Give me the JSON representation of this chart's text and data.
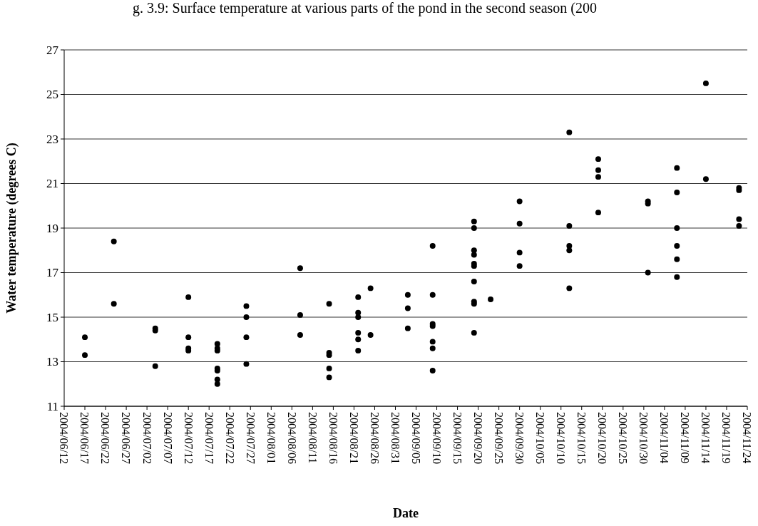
{
  "chart_data": {
    "type": "scatter",
    "title": "g. 3.9: Surface temperature at various parts of the pond in the second season (200",
    "xlabel": "Date",
    "ylabel": "Water temperature (degrees C)",
    "x": [
      "2004-06-17",
      "2004-06-17",
      "2004-06-24",
      "2004-06-24",
      "2004-07-04",
      "2004-07-04",
      "2004-07-04",
      "2004-07-12",
      "2004-07-12",
      "2004-07-12",
      "2004-07-12",
      "2004-07-19",
      "2004-07-19",
      "2004-07-19",
      "2004-07-19",
      "2004-07-19",
      "2004-07-19",
      "2004-07-19",
      "2004-07-26",
      "2004-07-26",
      "2004-07-26",
      "2004-07-26",
      "2004-08-08",
      "2004-08-08",
      "2004-08-08",
      "2004-08-15",
      "2004-08-15",
      "2004-08-15",
      "2004-08-15",
      "2004-08-15",
      "2004-08-22",
      "2004-08-22",
      "2004-08-22",
      "2004-08-22",
      "2004-08-22",
      "2004-08-22",
      "2004-08-25",
      "2004-08-25",
      "2004-09-03",
      "2004-09-03",
      "2004-09-03",
      "2004-09-09",
      "2004-09-09",
      "2004-09-09",
      "2004-09-09",
      "2004-09-09",
      "2004-09-09",
      "2004-09-09",
      "2004-09-19",
      "2004-09-19",
      "2004-09-19",
      "2004-09-19",
      "2004-09-19",
      "2004-09-19",
      "2004-09-19",
      "2004-09-19",
      "2004-09-19",
      "2004-09-19",
      "2004-09-23",
      "2004-09-30",
      "2004-09-30",
      "2004-09-30",
      "2004-09-30",
      "2004-10-12",
      "2004-10-12",
      "2004-10-12",
      "2004-10-12",
      "2004-10-12",
      "2004-10-19",
      "2004-10-19",
      "2004-10-19",
      "2004-10-19",
      "2004-10-31",
      "2004-10-31",
      "2004-10-31",
      "2004-11-07",
      "2004-11-07",
      "2004-11-07",
      "2004-11-07",
      "2004-11-07",
      "2004-11-07",
      "2004-11-14",
      "2004-11-14",
      "2004-11-22",
      "2004-11-22",
      "2004-11-22",
      "2004-11-22"
    ],
    "series": [
      {
        "color": "#000000",
        "values": [
          14.1,
          13.3,
          18.4,
          15.6,
          14.5,
          14.4,
          12.8,
          15.9,
          14.1,
          13.6,
          13.5,
          13.8,
          13.6,
          13.5,
          12.7,
          12.6,
          12.2,
          12.0,
          15.5,
          15.0,
          14.1,
          12.9,
          17.2,
          15.1,
          14.2,
          15.6,
          13.4,
          13.3,
          12.7,
          12.3,
          15.9,
          15.2,
          15.0,
          14.3,
          14.0,
          13.5,
          16.3,
          14.2,
          16.0,
          15.4,
          14.5,
          18.2,
          16.0,
          14.7,
          14.6,
          13.9,
          13.6,
          12.6,
          19.3,
          19.0,
          18.0,
          17.8,
          17.4,
          17.3,
          16.6,
          15.7,
          15.6,
          14.3,
          15.8,
          20.2,
          19.2,
          17.9,
          17.3,
          23.3,
          19.1,
          18.2,
          18.0,
          16.3,
          22.1,
          21.6,
          21.3,
          19.7,
          20.2,
          20.1,
          17.0,
          21.7,
          20.6,
          19.0,
          18.2,
          17.6,
          16.8,
          25.5,
          21.2,
          20.8,
          20.7,
          19.4,
          19.1
        ]
      }
    ],
    "xlim": [
      "2004-06-12",
      "2004-11-24"
    ],
    "xticks": [
      {
        "value": "2004-06-12",
        "label": "2004/06/12"
      },
      {
        "value": "2004-06-17",
        "label": "2004/06/17"
      },
      {
        "value": "2004-06-22",
        "label": "2004/06/22"
      },
      {
        "value": "2004-06-27",
        "label": "2004/06/27"
      },
      {
        "value": "2004-07-02",
        "label": "2004/07/02"
      },
      {
        "value": "2004-07-07",
        "label": "2004/07/07"
      },
      {
        "value": "2004-07-12",
        "label": "2004/07/12"
      },
      {
        "value": "2004-07-17",
        "label": "2004/07/17"
      },
      {
        "value": "2004-07-22",
        "label": "2004/07/22"
      },
      {
        "value": "2004-07-27",
        "label": "2004/07/27"
      },
      {
        "value": "2004-08-01",
        "label": "2004/08/01"
      },
      {
        "value": "2004-08-06",
        "label": "2004/08/06"
      },
      {
        "value": "2004-08-11",
        "label": "2004/08/11"
      },
      {
        "value": "2004-08-16",
        "label": "2004/08/16"
      },
      {
        "value": "2004-08-21",
        "label": "2004/08/21"
      },
      {
        "value": "2004-08-26",
        "label": "2004/08/26"
      },
      {
        "value": "2004-08-31",
        "label": "2004/08/31"
      },
      {
        "value": "2004-09-05",
        "label": "2004/09/05"
      },
      {
        "value": "2004-09-10",
        "label": "2004/09/10"
      },
      {
        "value": "2004-09-15",
        "label": "2004/09/15"
      },
      {
        "value": "2004-09-20",
        "label": "2004/09/20"
      },
      {
        "value": "2004-09-25",
        "label": "2004/09/25"
      },
      {
        "value": "2004-09-30",
        "label": "2004/09/30"
      },
      {
        "value": "2004-10-05",
        "label": "2004/10/05"
      },
      {
        "value": "2004-10-10",
        "label": "2004/10/10"
      },
      {
        "value": "2004-10-15",
        "label": "2004/10/15"
      },
      {
        "value": "2004-10-20",
        "label": "2004/10/20"
      },
      {
        "value": "2004-10-25",
        "label": "2004/10/25"
      },
      {
        "value": "2004-10-30",
        "label": "2004/10/30"
      },
      {
        "value": "2004-11-04",
        "label": "2004/11/04"
      },
      {
        "value": "2004-11-09",
        "label": "2004/11/09"
      },
      {
        "value": "2004-11-14",
        "label": "2004/11/14"
      },
      {
        "value": "2004-11-19",
        "label": "2004/11/19"
      },
      {
        "value": "2004-11-24",
        "label": "2004/11/24"
      }
    ],
    "ylim": [
      11,
      27
    ],
    "yticks": [
      11,
      13,
      15,
      17,
      19,
      21,
      23,
      25,
      27
    ],
    "grid": "y",
    "marker": "circle"
  }
}
